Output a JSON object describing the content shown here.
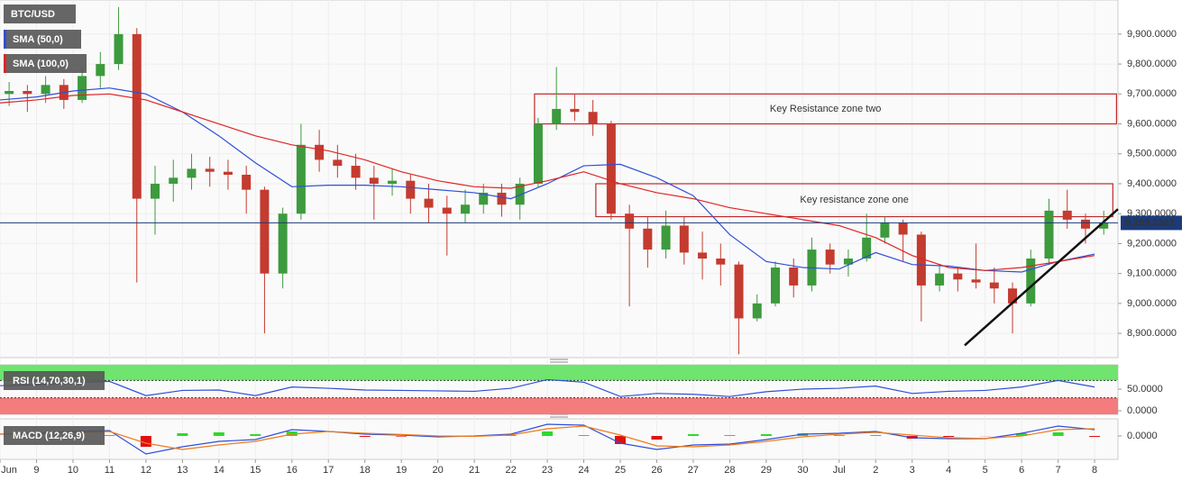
{
  "chart_data": {
    "type": "candlestick",
    "title": "BTC/USD",
    "candle_colors": {
      "up": "#3d9a3d",
      "down": "#c43b2f"
    },
    "candle_x": [
      0.25,
      0.75,
      1.25,
      1.75,
      2.25,
      2.75,
      3.25,
      3.75,
      4.25,
      4.75,
      5.25,
      5.75,
      6.25,
      6.75,
      7.25,
      7.75,
      8.25,
      8.75,
      9.25,
      9.75,
      10.25,
      10.75,
      11.25,
      11.75,
      12.25,
      12.75,
      13.25,
      13.75,
      14.25,
      14.75,
      15.25,
      15.75,
      16.25,
      16.75,
      17.25,
      17.75,
      18.25,
      18.75,
      19.25,
      19.75,
      20.25,
      20.75,
      21.25,
      21.75,
      22.25,
      22.75,
      23.25,
      23.75,
      24.25,
      24.75,
      25.25,
      25.75,
      26.25,
      26.75,
      27.25,
      27.75,
      28.25,
      28.75,
      29.25,
      29.75,
      30.25
    ],
    "candles": [
      [
        9700,
        9740,
        9660,
        9710
      ],
      [
        9710,
        9730,
        9640,
        9700
      ],
      [
        9700,
        9760,
        9670,
        9730
      ],
      [
        9730,
        9750,
        9650,
        9680
      ],
      [
        9680,
        9790,
        9670,
        9760
      ],
      [
        9760,
        9840,
        9720,
        9800
      ],
      [
        9800,
        9990,
        9780,
        9900
      ],
      [
        9900,
        9920,
        9070,
        9350
      ],
      [
        9350,
        9460,
        9230,
        9400
      ],
      [
        9400,
        9480,
        9340,
        9420
      ],
      [
        9420,
        9500,
        9380,
        9450
      ],
      [
        9450,
        9490,
        9390,
        9440
      ],
      [
        9440,
        9480,
        9380,
        9430
      ],
      [
        9430,
        9460,
        9300,
        9380
      ],
      [
        9380,
        9390,
        8900,
        9100
      ],
      [
        9100,
        9320,
        9050,
        9300
      ],
      [
        9300,
        9600,
        9280,
        9530
      ],
      [
        9530,
        9580,
        9440,
        9480
      ],
      [
        9480,
        9530,
        9420,
        9460
      ],
      [
        9460,
        9500,
        9380,
        9420
      ],
      [
        9420,
        9460,
        9280,
        9400
      ],
      [
        9400,
        9450,
        9360,
        9410
      ],
      [
        9410,
        9430,
        9300,
        9350
      ],
      [
        9350,
        9400,
        9270,
        9320
      ],
      [
        9320,
        9360,
        9160,
        9300
      ],
      [
        9300,
        9380,
        9270,
        9330
      ],
      [
        9330,
        9400,
        9300,
        9370
      ],
      [
        9370,
        9400,
        9290,
        9330
      ],
      [
        9330,
        9420,
        9280,
        9400
      ],
      [
        9400,
        9620,
        9390,
        9600
      ],
      [
        9600,
        9790,
        9580,
        9650
      ],
      [
        9650,
        9700,
        9610,
        9640
      ],
      [
        9640,
        9680,
        9560,
        9600
      ],
      [
        9600,
        9610,
        9280,
        9300
      ],
      [
        9300,
        9330,
        8990,
        9250
      ],
      [
        9250,
        9290,
        9120,
        9180
      ],
      [
        9180,
        9310,
        9150,
        9260
      ],
      [
        9260,
        9290,
        9130,
        9170
      ],
      [
        9170,
        9240,
        9080,
        9150
      ],
      [
        9150,
        9200,
        9060,
        9130
      ],
      [
        9130,
        9140,
        8830,
        8950
      ],
      [
        8950,
        9030,
        8940,
        9000
      ],
      [
        9000,
        9140,
        8990,
        9120
      ],
      [
        9120,
        9150,
        9020,
        9060
      ],
      [
        9060,
        9220,
        9040,
        9180
      ],
      [
        9180,
        9200,
        9100,
        9130
      ],
      [
        9130,
        9180,
        9090,
        9150
      ],
      [
        9150,
        9300,
        9140,
        9220
      ],
      [
        9220,
        9290,
        9200,
        9270
      ],
      [
        9270,
        9280,
        9140,
        9230
      ],
      [
        9230,
        9240,
        8940,
        9060
      ],
      [
        9060,
        9130,
        9040,
        9100
      ],
      [
        9100,
        9120,
        9040,
        9080
      ],
      [
        9080,
        9200,
        9050,
        9070
      ],
      [
        9070,
        9120,
        9000,
        9050
      ],
      [
        9050,
        9070,
        8900,
        9000
      ],
      [
        9000,
        9180,
        8990,
        9150
      ],
      [
        9150,
        9350,
        9130,
        9310
      ],
      [
        9310,
        9380,
        9250,
        9280
      ],
      [
        9280,
        9300,
        9200,
        9250
      ],
      [
        9250,
        9310,
        9230,
        9270
      ]
    ],
    "xlim": [
      0,
      30.64
    ],
    "xticks": [
      {
        "value": 0,
        "label": "Jun"
      },
      {
        "value": 1,
        "label": "9"
      },
      {
        "value": 2,
        "label": "10"
      },
      {
        "value": 3,
        "label": "11"
      },
      {
        "value": 4,
        "label": "12"
      },
      {
        "value": 5,
        "label": "13"
      },
      {
        "value": 6,
        "label": "14"
      },
      {
        "value": 7,
        "label": "15"
      },
      {
        "value": 8,
        "label": "16"
      },
      {
        "value": 9,
        "label": "17"
      },
      {
        "value": 10,
        "label": "18"
      },
      {
        "value": 11,
        "label": "19"
      },
      {
        "value": 12,
        "label": "20"
      },
      {
        "value": 13,
        "label": "21"
      },
      {
        "value": 14,
        "label": "22"
      },
      {
        "value": 15,
        "label": "23"
      },
      {
        "value": 16,
        "label": "24"
      },
      {
        "value": 17,
        "label": "25"
      },
      {
        "value": 18,
        "label": "26"
      },
      {
        "value": 19,
        "label": "27"
      },
      {
        "value": 20,
        "label": "28"
      },
      {
        "value": 21,
        "label": "29"
      },
      {
        "value": 22,
        "label": "30"
      },
      {
        "value": 23,
        "label": "Jul"
      },
      {
        "value": 24,
        "label": "2"
      },
      {
        "value": 25,
        "label": "3"
      },
      {
        "value": 26,
        "label": "4"
      },
      {
        "value": 27,
        "label": "5"
      },
      {
        "value": 28,
        "label": "6"
      },
      {
        "value": 29,
        "label": "7"
      },
      {
        "value": 30,
        "label": "8"
      }
    ],
    "ylim": [
      8819,
      10014
    ],
    "yticks": [
      {
        "value": 8900,
        "label": "8,900.0000"
      },
      {
        "value": 9000,
        "label": "9,000.0000"
      },
      {
        "value": 9100,
        "label": "9,100.0000"
      },
      {
        "value": 9200,
        "label": "9,200.0000"
      },
      {
        "value": 9300,
        "label": "9,300.0000"
      },
      {
        "value": 9400,
        "label": "9,400.0000"
      },
      {
        "value": 9500,
        "label": "9,500.0000"
      },
      {
        "value": 9600,
        "label": "9,600.0000"
      },
      {
        "value": 9700,
        "label": "9,700.0000"
      },
      {
        "value": 9800,
        "label": "9,800.0000"
      },
      {
        "value": 9900,
        "label": "9,900.0000"
      }
    ],
    "grid": true,
    "last_price": {
      "value": 9269.2321,
      "label": "9,269.2321"
    },
    "x": [
      0,
      1,
      2,
      3,
      4,
      5,
      6,
      7,
      8,
      9,
      10,
      11,
      12,
      13,
      14,
      15,
      16,
      17,
      18,
      19,
      20,
      21,
      22,
      23,
      24,
      25,
      26,
      27,
      28,
      29,
      30
    ],
    "series": [
      {
        "name": "SMA (50,0)",
        "color": "#2f4fd8",
        "values": [
          9680,
          9690,
          9710,
          9720,
          9700,
          9640,
          9560,
          9470,
          9390,
          9395,
          9395,
          9390,
          9380,
          9370,
          9350,
          9400,
          9460,
          9465,
          9420,
          9360,
          9230,
          9140,
          9120,
          9115,
          9170,
          9130,
          9125,
          9110,
          9105,
          9140,
          9165
        ]
      },
      {
        "name": "SMA (100,0)",
        "color": "#e02424",
        "values": [
          9670,
          9680,
          9695,
          9700,
          9680,
          9640,
          9600,
          9560,
          9530,
          9510,
          9480,
          9440,
          9410,
          9390,
          9385,
          9410,
          9440,
          9400,
          9370,
          9350,
          9320,
          9300,
          9280,
          9260,
          9220,
          9160,
          9120,
          9110,
          9120,
          9140,
          9160
        ]
      }
    ],
    "zones": [
      {
        "label": "Key Resistance zone two",
        "x": [
          14.65,
          30.6
        ],
        "y": [
          9600,
          9700
        ],
        "color": "#c0282d"
      },
      {
        "label": "Key resistance zone one",
        "x": [
          16.33,
          30.5
        ],
        "y": [
          9290,
          9400
        ],
        "color": "#c0282d"
      }
    ],
    "trendline": {
      "x": [
        26.44,
        30.64
      ],
      "y": [
        8860,
        9315
      ],
      "color": "#111111"
    },
    "panes": [
      {
        "type": "line",
        "title": "RSI (14,70,30,1)",
        "ylim": [
          -8.3,
          106.3
        ],
        "yticks": [
          {
            "value": 0,
            "label": "0.0000"
          },
          {
            "value": 50,
            "label": "50.0000"
          }
        ],
        "levels": [
          30,
          70
        ],
        "level_colors": [
          "#f47c7c",
          "#6fe46f"
        ],
        "series": [
          {
            "color": "#2f4fd8",
            "values": [
              58,
              60,
              65,
              68,
              35,
              47,
              48,
              35,
              55,
              52,
              48,
              47,
              46,
              45,
              52,
              72,
              66,
              33,
              40,
              38,
              33,
              44,
              50,
              52,
              57,
              40,
              45,
              47,
              55,
              70,
              55
            ]
          }
        ]
      },
      {
        "type": "macd",
        "title": "MACD (12,26,9)",
        "ylim": [
          -130,
          95
        ],
        "yticks": [
          {
            "value": 0,
            "label": "0.0000"
          }
        ],
        "series": [
          {
            "color": "#2f4fd8",
            "values": [
              10,
              15,
              25,
              30,
              -100,
              -60,
              -30,
              -20,
              35,
              25,
              10,
              5,
              -5,
              0,
              10,
              65,
              60,
              -40,
              -75,
              -50,
              -45,
              -20,
              10,
              15,
              25,
              -10,
              -15,
              -15,
              15,
              55,
              35
            ]
          },
          {
            "color": "#f07a1a",
            "values": [
              10,
              12,
              18,
              25,
              -40,
              -75,
              -50,
              -30,
              10,
              25,
              15,
              8,
              0,
              -2,
              5,
              40,
              55,
              5,
              -55,
              -60,
              -50,
              -30,
              -5,
              10,
              20,
              5,
              -10,
              -14,
              0,
              35,
              40
            ]
          }
        ],
        "histogram": {
          "up": "#2fd82f",
          "down": "#e01010",
          "values": [
            0,
            3,
            7,
            5,
            -60,
            15,
            20,
            10,
            25,
            0,
            -5,
            -3,
            -5,
            2,
            5,
            25,
            5,
            -45,
            -20,
            10,
            5,
            10,
            15,
            5,
            5,
            -15,
            -5,
            -1,
            15,
            20,
            -5
          ]
        }
      }
    ]
  }
}
